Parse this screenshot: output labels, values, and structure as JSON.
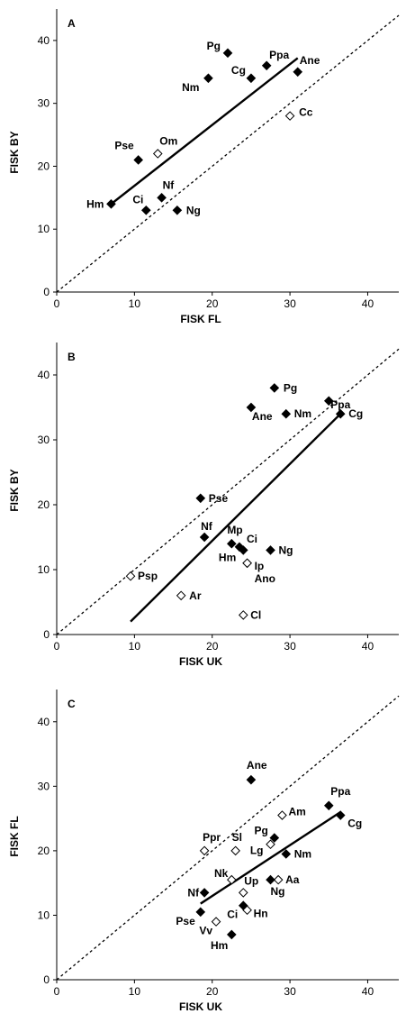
{
  "chart_data": [
    {
      "type": "scatter",
      "panel": "A",
      "xlabel": "FISK FL",
      "ylabel": "FISK BY",
      "xlim": [
        0,
        44
      ],
      "ylim": [
        0,
        45
      ],
      "xticks": [
        0,
        10,
        20,
        30,
        40
      ],
      "yticks": [
        0,
        10,
        20,
        30,
        40
      ],
      "grid": false,
      "diagonal": true,
      "fit_line": [
        [
          7,
          14
        ],
        [
          31,
          37.2
        ]
      ],
      "points": [
        {
          "label": "Pg",
          "x": 22,
          "y": 38,
          "filled": true
        },
        {
          "label": "Ppa",
          "x": 27,
          "y": 36,
          "filled": true
        },
        {
          "label": "Cg",
          "x": 25,
          "y": 34,
          "filled": true
        },
        {
          "label": "Nm",
          "x": 19.5,
          "y": 34,
          "filled": true
        },
        {
          "label": "Ane",
          "x": 31,
          "y": 35,
          "filled": true
        },
        {
          "label": "Cc",
          "x": 30,
          "y": 28,
          "filled": false
        },
        {
          "label": "Om",
          "x": 13,
          "y": 22,
          "filled": false
        },
        {
          "label": "Pse",
          "x": 10.5,
          "y": 21,
          "filled": true
        },
        {
          "label": "Nf",
          "x": 13.5,
          "y": 15,
          "filled": true
        },
        {
          "label": "Hm",
          "x": 7,
          "y": 14,
          "filled": true
        },
        {
          "label": "Ci",
          "x": 11.5,
          "y": 13,
          "filled": true
        },
        {
          "label": "Ng",
          "x": 15.5,
          "y": 13,
          "filled": true
        }
      ]
    },
    {
      "type": "scatter",
      "panel": "B",
      "xlabel": "FISK UK",
      "ylabel": "FISK BY",
      "xlim": [
        0,
        44
      ],
      "ylim": [
        0,
        45
      ],
      "xticks": [
        0,
        10,
        20,
        30,
        40
      ],
      "yticks": [
        0,
        10,
        20,
        30,
        40
      ],
      "grid": false,
      "diagonal": true,
      "fit_line": [
        [
          9.5,
          2
        ],
        [
          36.5,
          34
        ]
      ],
      "points": [
        {
          "label": "Pg",
          "x": 28,
          "y": 38,
          "filled": true
        },
        {
          "label": "Ppa",
          "x": 35,
          "y": 36,
          "filled": true
        },
        {
          "label": "Ane",
          "x": 25,
          "y": 35,
          "filled": true
        },
        {
          "label": "Nm",
          "x": 29.5,
          "y": 34,
          "filled": true
        },
        {
          "label": "Cg",
          "x": 36.5,
          "y": 34,
          "filled": true
        },
        {
          "label": "Pse",
          "x": 18.5,
          "y": 21,
          "filled": true
        },
        {
          "label": "Nf",
          "x": 19,
          "y": 15,
          "filled": true
        },
        {
          "label": "Mp",
          "x": 22.5,
          "y": 14,
          "filled": true
        },
        {
          "label": "Ci",
          "x": 23.5,
          "y": 13.5,
          "filled": true
        },
        {
          "label": "Hm",
          "x": 24,
          "y": 13,
          "filled": true
        },
        {
          "label": "Ng",
          "x": 27.5,
          "y": 13,
          "filled": true
        },
        {
          "label": "Ip",
          "x": 24.5,
          "y": 11,
          "filled": false
        },
        {
          "label": "Ano",
          "x": 24.5,
          "y": 11,
          "filled": false
        },
        {
          "label": "Psp",
          "x": 9.5,
          "y": 9,
          "filled": false
        },
        {
          "label": "Ar",
          "x": 16,
          "y": 6,
          "filled": false
        },
        {
          "label": "Cl",
          "x": 24,
          "y": 3,
          "filled": false
        }
      ]
    },
    {
      "type": "scatter",
      "panel": "C",
      "xlabel": "FISK UK",
      "ylabel": "FISK FL",
      "xlim": [
        0,
        44
      ],
      "ylim": [
        0,
        45
      ],
      "xticks": [
        0,
        10,
        20,
        30,
        40
      ],
      "yticks": [
        0,
        10,
        20,
        30,
        40
      ],
      "grid": false,
      "diagonal": true,
      "fit_line": [
        [
          18.5,
          11.8
        ],
        [
          36.5,
          26
        ]
      ],
      "points": [
        {
          "label": "Ane",
          "x": 25,
          "y": 31,
          "filled": true
        },
        {
          "label": "Ppa",
          "x": 35,
          "y": 27,
          "filled": true
        },
        {
          "label": "Cg",
          "x": 36.5,
          "y": 25.5,
          "filled": true
        },
        {
          "label": "Am",
          "x": 29,
          "y": 25.5,
          "filled": false
        },
        {
          "label": "Pg",
          "x": 28,
          "y": 22,
          "filled": true
        },
        {
          "label": "Lg",
          "x": 27.5,
          "y": 21,
          "filled": false
        },
        {
          "label": "Sl",
          "x": 23,
          "y": 20,
          "filled": false
        },
        {
          "label": "Ppr",
          "x": 19,
          "y": 20,
          "filled": false
        },
        {
          "label": "Nm",
          "x": 29.5,
          "y": 19.5,
          "filled": true
        },
        {
          "label": "Nk",
          "x": 22.5,
          "y": 15.5,
          "filled": false
        },
        {
          "label": "Aa",
          "x": 28.5,
          "y": 15.5,
          "filled": false
        },
        {
          "label": "Ng",
          "x": 27.5,
          "y": 15.5,
          "filled": true
        },
        {
          "label": "Up",
          "x": 24,
          "y": 13.5,
          "filled": false
        },
        {
          "label": "Nf",
          "x": 19,
          "y": 13.5,
          "filled": true
        },
        {
          "label": "Ci",
          "x": 24,
          "y": 11.5,
          "filled": true
        },
        {
          "label": "Hn",
          "x": 24.5,
          "y": 10.8,
          "filled": false
        },
        {
          "label": "Pse",
          "x": 18.5,
          "y": 10.5,
          "filled": true
        },
        {
          "label": "Vv",
          "x": 20.5,
          "y": 9,
          "filled": false
        },
        {
          "label": "Hm",
          "x": 22.5,
          "y": 7,
          "filled": true
        }
      ]
    }
  ]
}
